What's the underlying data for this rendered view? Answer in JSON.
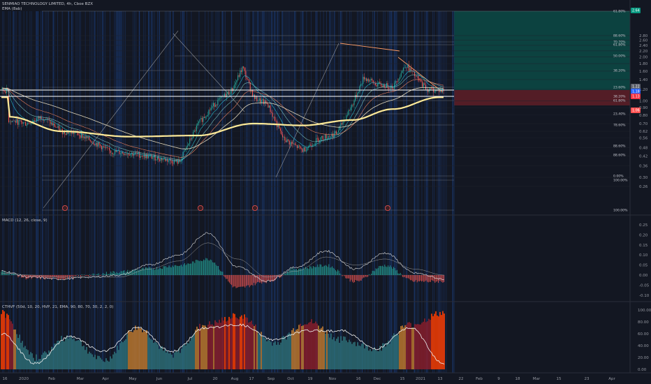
{
  "panes": {
    "price": {
      "symbol_title": "SENMIAO TECHNOLOGY LIMITED, 4h, Cboe BZX",
      "indicator_label": "EMA (8ab)",
      "y_ticks": [
        "2.80",
        "2.60",
        "2.40",
        "2.20",
        "2.00",
        "1.80",
        "1.60",
        "1.40",
        "1.20",
        "1.00",
        "0.90",
        "0.80",
        "0.70",
        "0.62",
        "0.56",
        "0.48",
        "0.42",
        "0.36",
        "0.30",
        "0.26"
      ],
      "fib_labels": [
        "61.80%",
        "100.00%",
        "88.60%",
        "70.70%",
        "61.80%",
        "50.00%",
        "38.20%",
        "23.60%",
        "38.20%",
        "61.80%",
        "23.40%",
        "78.60%",
        "88.60%",
        "88.60%",
        "0.00%",
        "100.00%"
      ],
      "price_tags": [
        {
          "text": "2.64",
          "color": "#089981"
        },
        {
          "text": "1.22",
          "color": "#5d606b"
        },
        {
          "text": "1.18",
          "color": "#2962ff"
        },
        {
          "text": "1.13",
          "color": "#f23645"
        },
        {
          "text": "1.06",
          "color": "#ff5252"
        }
      ]
    },
    "macd": {
      "label": "MACD (12, 26, close, 9)",
      "y_ticks": [
        "0.25",
        "0.20",
        "0.15",
        "0.10",
        "0.05",
        "0.00",
        "-0.05",
        "-0.10"
      ]
    },
    "osc": {
      "label": "CTHVF (50d, 10, 20, HVP, 21, EMA, 90, 80, 70, 30, 2, 2, 0)",
      "y_ticks": [
        "100.00",
        "80.00",
        "60.00",
        "40.00",
        "20.00",
        "0.00"
      ]
    }
  },
  "time_axis": {
    "labels": [
      "16",
      "2020",
      "Feb",
      "Mar",
      "Apr",
      "May",
      "Jun",
      "Jul",
      "20",
      "Aug",
      "17",
      "Sep",
      "Oct",
      "19",
      "Nov",
      "16",
      "Dec",
      "15",
      "2021",
      "13",
      "22",
      "Feb",
      "9",
      "18",
      "Mar",
      "15",
      "23",
      "Apr"
    ]
  },
  "colors": {
    "background": "#131722",
    "candle_up": "#26a69a",
    "candle_down": "#ef5350",
    "ema_slow": "#ffeb99",
    "target_zone": "#0a4d47",
    "stop_zone": "#5b1e27",
    "volume_stripe": "#1a3d7c"
  },
  "chart_data": [
    {
      "type": "candlestick",
      "title": "SENMIAO TECHNOLOGY LIMITED, 4h, Cboe BZX",
      "ylim": [
        0.26,
        2.8
      ],
      "close_series": [
        {
          "t": "2019-12-16",
          "v": 0.74
        },
        {
          "t": "2020-01-01",
          "v": 0.7
        },
        {
          "t": "2020-01-15",
          "v": 0.78
        },
        {
          "t": "2020-02-01",
          "v": 0.62
        },
        {
          "t": "2020-02-15",
          "v": 0.6
        },
        {
          "t": "2020-03-01",
          "v": 0.52
        },
        {
          "t": "2020-03-15",
          "v": 0.45
        },
        {
          "t": "2020-04-01",
          "v": 0.44
        },
        {
          "t": "2020-04-15",
          "v": 0.42
        },
        {
          "t": "2020-05-01",
          "v": 0.4
        },
        {
          "t": "2020-05-15",
          "v": 0.38
        },
        {
          "t": "2020-06-01",
          "v": 0.7
        },
        {
          "t": "2020-06-15",
          "v": 0.95
        },
        {
          "t": "2020-07-01",
          "v": 1.2
        },
        {
          "t": "2020-07-10",
          "v": 1.7
        },
        {
          "t": "2020-07-20",
          "v": 1.05
        },
        {
          "t": "2020-08-01",
          "v": 0.95
        },
        {
          "t": "2020-08-15",
          "v": 0.55
        },
        {
          "t": "2020-09-01",
          "v": 0.46
        },
        {
          "t": "2020-09-15",
          "v": 0.55
        },
        {
          "t": "2020-10-01",
          "v": 0.6
        },
        {
          "t": "2020-10-15",
          "v": 0.95
        },
        {
          "t": "2020-10-25",
          "v": 1.45
        },
        {
          "t": "2020-11-05",
          "v": 1.3
        },
        {
          "t": "2020-11-20",
          "v": 1.25
        },
        {
          "t": "2020-12-01",
          "v": 1.78
        },
        {
          "t": "2020-12-10",
          "v": 1.45
        },
        {
          "t": "2020-12-20",
          "v": 1.2
        },
        {
          "t": "2020-12-31",
          "v": 1.18
        }
      ],
      "ema_slow_series": [
        {
          "t": "2019-12-16",
          "v": 0.78
        },
        {
          "t": "2020-02-01",
          "v": 0.62
        },
        {
          "t": "2020-04-01",
          "v": 0.57
        },
        {
          "t": "2020-06-01",
          "v": 0.58
        },
        {
          "t": "2020-07-20",
          "v": 0.7
        },
        {
          "t": "2020-09-01",
          "v": 0.68
        },
        {
          "t": "2020-10-15",
          "v": 0.74
        },
        {
          "t": "2020-11-20",
          "v": 0.88
        },
        {
          "t": "2020-12-31",
          "v": 1.06
        }
      ],
      "target_zone": [
        1.15,
        2.8
      ],
      "stop_zone": [
        1.02,
        1.15
      ],
      "current_price": 1.18
    },
    {
      "type": "line",
      "title": "MACD (12, 26, close, 9)",
      "ylim": [
        -0.12,
        0.27
      ],
      "x": [
        "2020-01",
        "2020-02",
        "2020-03",
        "2020-04",
        "2020-05",
        "2020-06",
        "2020-07",
        "2020-07-15",
        "2020-08",
        "2020-09",
        "2020-10",
        "2020-10-25",
        "2020-11",
        "2020-12",
        "2020-12-20",
        "2021-01"
      ],
      "series": [
        {
          "values": [
            0.02,
            -0.01,
            -0.02,
            -0.01,
            0.0,
            0.05,
            0.1,
            0.21,
            0.04,
            -0.03,
            0.04,
            0.12,
            0.03,
            0.11,
            0.01,
            -0.02
          ]
        },
        {
          "values": [
            0.01,
            0.0,
            -0.01,
            -0.01,
            -0.01,
            0.03,
            0.07,
            0.16,
            0.08,
            -0.01,
            0.02,
            0.09,
            0.05,
            0.08,
            0.03,
            0.0
          ]
        }
      ]
    },
    {
      "type": "bar",
      "title": "CTHVF (50d, 10, 20, HVP, 21, EMA, 90, 80, 70, 30, 2, 2, 0)",
      "ylim": [
        0,
        100
      ],
      "x": [
        "2019-12",
        "2020-01",
        "2020-02",
        "2020-03",
        "2020-04",
        "2020-05",
        "2020-06",
        "2020-07",
        "2020-08",
        "2020-09",
        "2020-10",
        "2020-11",
        "2020-12",
        "2021-01"
      ],
      "series": [
        {
          "values": [
            95,
            20,
            55,
            15,
            70,
            25,
            75,
            90,
            45,
            80,
            50,
            35,
            75,
            95
          ]
        },
        {
          "values": [
            60,
            10,
            55,
            30,
            70,
            30,
            70,
            75,
            50,
            65,
            65,
            35,
            70,
            10
          ]
        }
      ]
    }
  ]
}
